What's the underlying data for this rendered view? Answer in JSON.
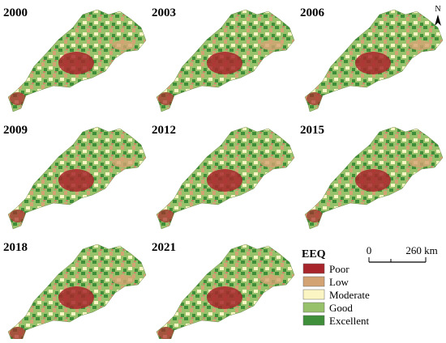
{
  "panels": [
    {
      "year": "2000"
    },
    {
      "year": "2003"
    },
    {
      "year": "2006"
    },
    {
      "year": "2009"
    },
    {
      "year": "2012"
    },
    {
      "year": "2015"
    },
    {
      "year": "2018"
    },
    {
      "year": "2021"
    }
  ],
  "north": "N",
  "legend": {
    "title": "EEQ",
    "items": [
      {
        "label": "Poor",
        "color": "#a8262b"
      },
      {
        "label": "Low",
        "color": "#d4a373"
      },
      {
        "label": "Moderate",
        "color": "#fbf5c4"
      },
      {
        "label": "Good",
        "color": "#98c16b"
      },
      {
        "label": "Excellent",
        "color": "#3f8f3a"
      }
    ]
  },
  "scale_bar": {
    "zero": "0",
    "distance": "260 km"
  }
}
